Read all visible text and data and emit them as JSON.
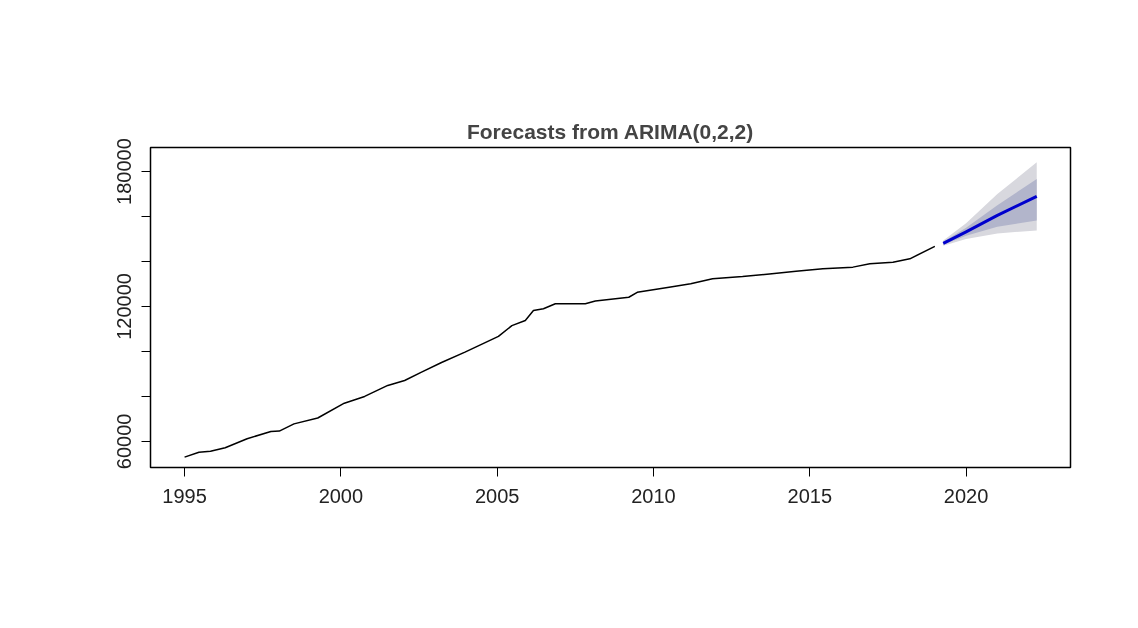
{
  "chart_data": {
    "type": "line",
    "title": "Forecasts from ARIMA(0,2,2)",
    "xlim": [
      1993.91,
      2023.34
    ],
    "ylim": [
      48400,
      190700
    ],
    "xticks": [
      1995,
      2000,
      2005,
      2010,
      2015,
      2020
    ],
    "yticks": [
      60000,
      {
        "value": 80000,
        "label": null
      },
      {
        "value": 100000,
        "label": null
      },
      120000,
      {
        "value": 140000,
        "label": null
      },
      {
        "value": 160000,
        "label": null
      },
      180000
    ],
    "series": [
      {
        "color": "#000000",
        "x": [
          1995.0,
          1995.46,
          1995.83,
          1996.3,
          1997.0,
          1997.76,
          1998.03,
          1998.5,
          1999.26,
          2000.11,
          2000.76,
          2001.5,
          2002.04,
          2002.58,
          2003.22,
          2003.97,
          2005.04,
          2005.47,
          2005.9,
          2006.16,
          2006.48,
          2006.86,
          2007.82,
          2008.14,
          2009.21,
          2009.48,
          2010.5,
          2011.19,
          2011.89,
          2012.85,
          2013.71,
          2014.56,
          2015.42,
          2016.38,
          2016.92,
          2017.66,
          2018.2,
          2019.0
        ],
        "values": [
          53000,
          55200,
          55600,
          57200,
          61200,
          64400,
          64600,
          67800,
          70400,
          77000,
          80000,
          84900,
          87100,
          90800,
          95100,
          99700,
          106700,
          111500,
          113800,
          118200,
          119000,
          121200,
          121200,
          122400,
          124100,
          126300,
          128600,
          130100,
          132300,
          133300,
          134500,
          135700,
          136800,
          137500,
          139000,
          139700,
          141200,
          146700
        ]
      },
      {
        "color": "#d8d8de",
        "x": [
          2019.27,
          2020.0,
          2021.0,
          2022.26
        ],
        "values": [
          null,
          null,
          null,
          null
        ],
        "lower": [
          147000,
          150000,
          152500,
          153800
        ],
        "upper": [
          149300,
          157000,
          170000,
          184100
        ]
      },
      {
        "color": "#b2b5cb",
        "x": [
          2019.27,
          2020.0,
          2021.0,
          2022.26
        ],
        "values": [
          null,
          null,
          null,
          null
        ],
        "lower": [
          147500,
          151500,
          155500,
          158200
        ],
        "upper": [
          148800,
          155000,
          165000,
          176700
        ]
      },
      {
        "color": "#0000cd",
        "x": [
          2019.27,
          2020.0,
          2021.0,
          2022.26
        ],
        "values": [
          148100,
          153200,
          160500,
          169000
        ]
      }
    ]
  }
}
